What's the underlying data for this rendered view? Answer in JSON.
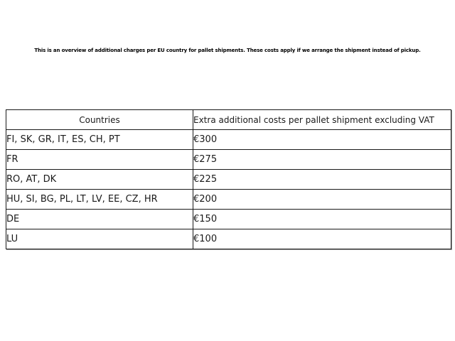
{
  "intro": "This is an overview of additional charges per EU country for pallet shipments. These costs apply if we arrange the shipment instead of pickup.",
  "table": {
    "headers": {
      "countries": "Countries",
      "cost": "Extra additional costs per pallet shipment excluding VAT"
    },
    "rows": [
      {
        "countries": "FI, SK, GR, IT, ES, CH, PT",
        "cost": "€300"
      },
      {
        "countries": "FR",
        "cost": "€275"
      },
      {
        "countries": "RO, AT, DK",
        "cost": "€225"
      },
      {
        "countries": "HU, SI, BG, PL, LT, LV, EE, CZ, HR",
        "cost": "€200"
      },
      {
        "countries": "DE",
        "cost": "€150"
      },
      {
        "countries": "LU",
        "cost": "€100"
      }
    ]
  },
  "colors": {
    "background": "#ffffff",
    "text": "#1a1a1a",
    "border": "#1a1a1a"
  }
}
